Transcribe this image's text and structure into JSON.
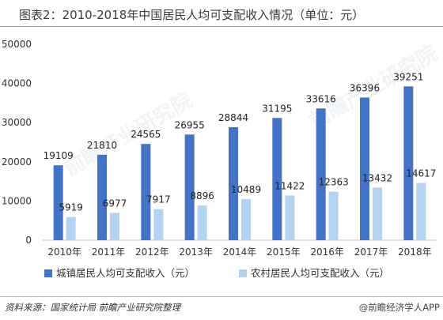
{
  "title": "图表2：2010-2018年中国居民人均可支配收入情况（单位：元）",
  "source": "资料来源：国家统计局 前瞻产业研究院整理",
  "brand": "@前瞻经济学人APP",
  "watermark": "前瞻产业研究院",
  "colors": {
    "urban": "#4472c4",
    "rural": "#b4d3f1",
    "axis": "#bfbfbf"
  },
  "chart_data": {
    "type": "bar",
    "categories": [
      "2010年",
      "2011年",
      "2012年",
      "2013年",
      "2014年",
      "2015年",
      "2016年",
      "2017年",
      "2018年"
    ],
    "series": [
      {
        "name": "城镇居民人均可支配收入（元）",
        "values": [
          19109,
          21810,
          24565,
          26955,
          28844,
          31195,
          33616,
          36396,
          39251
        ]
      },
      {
        "name": "农村居民人均可支配收入（元）",
        "values": [
          5919,
          6977,
          7917,
          8896,
          10489,
          11422,
          12363,
          13432,
          14617
        ]
      }
    ],
    "yticks": [
      0,
      10000,
      20000,
      30000,
      40000,
      50000
    ],
    "ylim": [
      0,
      50000
    ],
    "legend": "bottom",
    "grid": false
  }
}
